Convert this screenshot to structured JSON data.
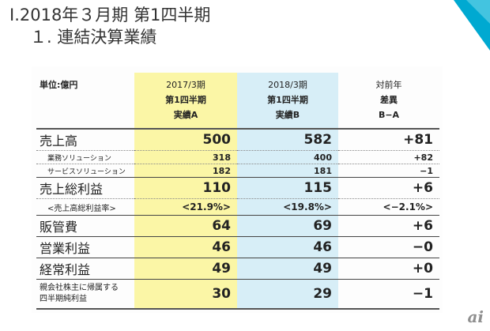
{
  "heading": {
    "title": "Ⅰ.2018年３月期 第1四半期",
    "subtitle": "１. 連結決算業績"
  },
  "colors": {
    "accent": "#00a9d1",
    "yellow_col": "#fbf6a6",
    "blue_col": "#d7eef7"
  },
  "table": {
    "unit_label": "単位:億円",
    "columns": [
      {
        "lines": [
          "2017/3期",
          "第1四半期",
          "実績A"
        ]
      },
      {
        "lines": [
          "2018/3期",
          "第1四半期",
          "実績B"
        ]
      },
      {
        "lines": [
          "対前年",
          "差異",
          "B−A"
        ]
      }
    ],
    "rows": [
      {
        "label": "売上高",
        "a": "500",
        "b": "582",
        "diff": "+81"
      },
      {
        "label": "業務ソリューション",
        "a": "318",
        "b": "400",
        "diff": "+82"
      },
      {
        "label": "サービスソリューション",
        "a": "182",
        "b": "181",
        "diff": "−1"
      },
      {
        "label": "売上総利益",
        "a": "110",
        "b": "115",
        "diff": "+6"
      },
      {
        "label": "<売上高総利益率>",
        "a": "<21.9%>",
        "b": "<19.8%>",
        "diff": "<−2.1%>"
      },
      {
        "label": "販管費",
        "a": "64",
        "b": "69",
        "diff": "+6"
      },
      {
        "label": "営業利益",
        "a": "46",
        "b": "46",
        "diff": "−0"
      },
      {
        "label": "経常利益",
        "a": "49",
        "b": "49",
        "diff": "+0"
      },
      {
        "label_lines": [
          "親会社株主に帰属する",
          "四半期純利益"
        ],
        "a": "30",
        "b": "29",
        "diff": "−1"
      }
    ]
  },
  "logo": {
    "text": "ai",
    "icon": "itmedia-ai-logo"
  }
}
